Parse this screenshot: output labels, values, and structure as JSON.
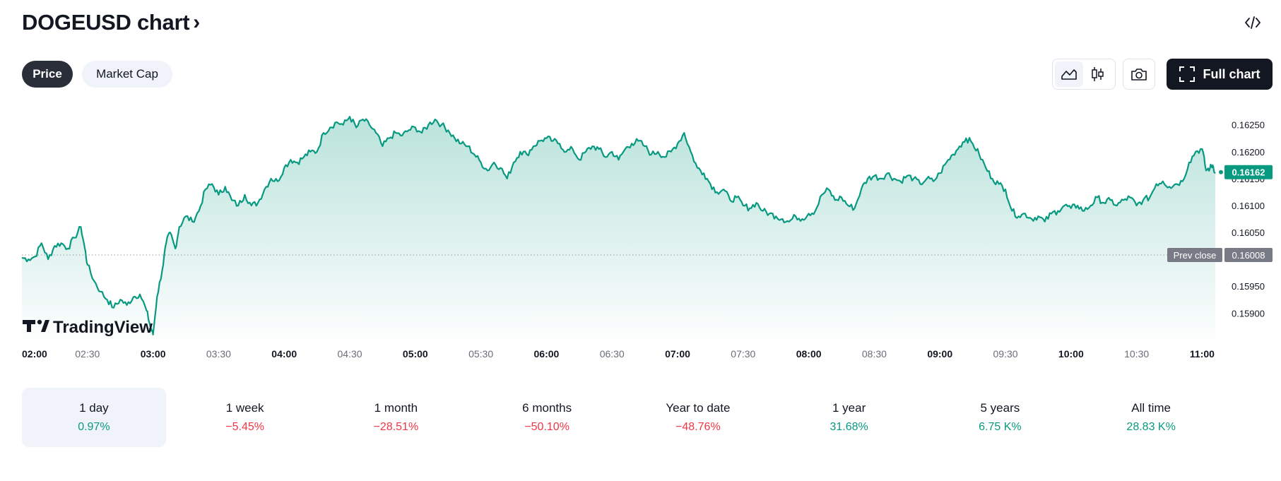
{
  "header": {
    "title": "DOGEUSD chart",
    "chevron": "›",
    "embed_icon": "code-icon"
  },
  "tabs": [
    {
      "label": "Price",
      "active": true
    },
    {
      "label": "Market Cap",
      "active": false
    }
  ],
  "toolbar": {
    "area_icon": "area-chart-icon",
    "candles_icon": "candlestick-icon",
    "snapshot_icon": "camera-icon",
    "full_chart_label": "Full chart",
    "full_chart_icon": "fullscreen-icon"
  },
  "watermark": {
    "text": "TradingView",
    "logo": "tradingview-logo-icon"
  },
  "colors": {
    "line": "#089981",
    "positive": "#089981",
    "negative": "#f23645",
    "prev_close_badge": "#787b86"
  },
  "chart_data": {
    "type": "area",
    "symbol": "DOGEUSD",
    "ylim": [
      0.15865,
      0.16285
    ],
    "y_ticks": [
      "0.16250",
      "0.16200",
      "0.16150",
      "0.16100",
      "0.16050",
      "0.15950",
      "0.15900"
    ],
    "x_ticks": [
      {
        "label": "02:00",
        "bold": true
      },
      {
        "label": "02:30",
        "bold": false
      },
      {
        "label": "03:00",
        "bold": true
      },
      {
        "label": "03:30",
        "bold": false
      },
      {
        "label": "04:00",
        "bold": true
      },
      {
        "label": "04:30",
        "bold": false
      },
      {
        "label": "05:00",
        "bold": true
      },
      {
        "label": "05:30",
        "bold": false
      },
      {
        "label": "06:00",
        "bold": true
      },
      {
        "label": "06:30",
        "bold": false
      },
      {
        "label": "07:00",
        "bold": true
      },
      {
        "label": "07:30",
        "bold": false
      },
      {
        "label": "08:00",
        "bold": true
      },
      {
        "label": "08:30",
        "bold": false
      },
      {
        "label": "09:00",
        "bold": true
      },
      {
        "label": "09:30",
        "bold": false
      },
      {
        "label": "10:00",
        "bold": true
      },
      {
        "label": "10:30",
        "bold": false
      },
      {
        "label": "11:00",
        "bold": true
      }
    ],
    "x_hours": [
      2.0,
      11.1
    ],
    "prev_close": {
      "label": "Prev close",
      "value": 0.16008,
      "text": "0.16008"
    },
    "last_price": {
      "value": 0.16162,
      "text": "0.16162"
    },
    "series": [
      [
        2.0,
        0.16003
      ],
      [
        2.05,
        0.16
      ],
      [
        2.1,
        0.16005
      ],
      [
        2.15,
        0.1603
      ],
      [
        2.2,
        0.16
      ],
      [
        2.25,
        0.16025
      ],
      [
        2.3,
        0.1603
      ],
      [
        2.35,
        0.1602
      ],
      [
        2.4,
        0.1604
      ],
      [
        2.45,
        0.1606
      ],
      [
        2.48,
        0.1602
      ],
      [
        2.5,
        0.1599
      ],
      [
        2.55,
        0.1596
      ],
      [
        2.6,
        0.1594
      ],
      [
        2.65,
        0.15925
      ],
      [
        2.7,
        0.1591
      ],
      [
        2.75,
        0.15925
      ],
      [
        2.8,
        0.15915
      ],
      [
        2.85,
        0.1593
      ],
      [
        2.9,
        0.15935
      ],
      [
        2.95,
        0.15905
      ],
      [
        2.98,
        0.15875
      ],
      [
        3.0,
        0.1586
      ],
      [
        3.03,
        0.1593
      ],
      [
        3.07,
        0.1598
      ],
      [
        3.1,
        0.1603
      ],
      [
        3.13,
        0.1605
      ],
      [
        3.17,
        0.1602
      ],
      [
        3.2,
        0.1606
      ],
      [
        3.25,
        0.1608
      ],
      [
        3.3,
        0.1607
      ],
      [
        3.35,
        0.1609
      ],
      [
        3.4,
        0.1613
      ],
      [
        3.45,
        0.1614
      ],
      [
        3.5,
        0.1612
      ],
      [
        3.55,
        0.16135
      ],
      [
        3.6,
        0.1611
      ],
      [
        3.65,
        0.161
      ],
      [
        3.7,
        0.1612
      ],
      [
        3.75,
        0.161
      ],
      [
        3.8,
        0.16105
      ],
      [
        3.85,
        0.1613
      ],
      [
        3.9,
        0.1615
      ],
      [
        3.95,
        0.16145
      ],
      [
        4.0,
        0.1617
      ],
      [
        4.05,
        0.16185
      ],
      [
        4.1,
        0.1618
      ],
      [
        4.15,
        0.1619
      ],
      [
        4.2,
        0.162
      ],
      [
        4.25,
        0.162
      ],
      [
        4.3,
        0.16235
      ],
      [
        4.35,
        0.16245
      ],
      [
        4.4,
        0.16255
      ],
      [
        4.45,
        0.1625
      ],
      [
        4.5,
        0.16265
      ],
      [
        4.55,
        0.16245
      ],
      [
        4.6,
        0.1626
      ],
      [
        4.65,
        0.1625
      ],
      [
        4.7,
        0.16235
      ],
      [
        4.75,
        0.1621
      ],
      [
        4.8,
        0.16225
      ],
      [
        4.85,
        0.16235
      ],
      [
        4.9,
        0.1623
      ],
      [
        4.95,
        0.1624
      ],
      [
        5.0,
        0.16245
      ],
      [
        5.05,
        0.16235
      ],
      [
        5.1,
        0.1625
      ],
      [
        5.15,
        0.1626
      ],
      [
        5.2,
        0.1625
      ],
      [
        5.25,
        0.1624
      ],
      [
        5.3,
        0.16225
      ],
      [
        5.35,
        0.16215
      ],
      [
        5.4,
        0.1621
      ],
      [
        5.45,
        0.16195
      ],
      [
        5.5,
        0.1618
      ],
      [
        5.55,
        0.16165
      ],
      [
        5.6,
        0.1618
      ],
      [
        5.65,
        0.1617
      ],
      [
        5.7,
        0.1615
      ],
      [
        5.75,
        0.1618
      ],
      [
        5.8,
        0.162
      ],
      [
        5.85,
        0.16195
      ],
      [
        5.9,
        0.1621
      ],
      [
        5.95,
        0.1622
      ],
      [
        6.0,
        0.16225
      ],
      [
        6.05,
        0.1622
      ],
      [
        6.1,
        0.16215
      ],
      [
        6.15,
        0.162
      ],
      [
        6.2,
        0.16205
      ],
      [
        6.25,
        0.16185
      ],
      [
        6.3,
        0.162
      ],
      [
        6.35,
        0.1621
      ],
      [
        6.4,
        0.16205
      ],
      [
        6.45,
        0.1619
      ],
      [
        6.5,
        0.162
      ],
      [
        6.55,
        0.16185
      ],
      [
        6.6,
        0.16205
      ],
      [
        6.65,
        0.16215
      ],
      [
        6.7,
        0.1622
      ],
      [
        6.75,
        0.1621
      ],
      [
        6.8,
        0.16195
      ],
      [
        6.85,
        0.162
      ],
      [
        6.9,
        0.1619
      ],
      [
        6.95,
        0.162
      ],
      [
        7.0,
        0.16215
      ],
      [
        7.05,
        0.16235
      ],
      [
        7.1,
        0.162
      ],
      [
        7.15,
        0.1617
      ],
      [
        7.2,
        0.1616
      ],
      [
        7.25,
        0.1614
      ],
      [
        7.3,
        0.16125
      ],
      [
        7.35,
        0.1613
      ],
      [
        7.4,
        0.1611
      ],
      [
        7.45,
        0.16115
      ],
      [
        7.5,
        0.161
      ],
      [
        7.55,
        0.16095
      ],
      [
        7.6,
        0.16105
      ],
      [
        7.65,
        0.1609
      ],
      [
        7.7,
        0.16085
      ],
      [
        7.75,
        0.1608
      ],
      [
        7.8,
        0.16075
      ],
      [
        7.85,
        0.1607
      ],
      [
        7.9,
        0.1608
      ],
      [
        7.95,
        0.16075
      ],
      [
        8.0,
        0.16085
      ],
      [
        8.05,
        0.1609
      ],
      [
        8.1,
        0.1612
      ],
      [
        8.15,
        0.1613
      ],
      [
        8.2,
        0.1611
      ],
      [
        8.25,
        0.16115
      ],
      [
        8.3,
        0.161
      ],
      [
        8.35,
        0.16095
      ],
      [
        8.4,
        0.1613
      ],
      [
        8.45,
        0.1615
      ],
      [
        8.5,
        0.16155
      ],
      [
        8.55,
        0.1615
      ],
      [
        8.6,
        0.1616
      ],
      [
        8.65,
        0.1615
      ],
      [
        8.7,
        0.16145
      ],
      [
        8.75,
        0.16155
      ],
      [
        8.8,
        0.1615
      ],
      [
        8.85,
        0.1614
      ],
      [
        8.9,
        0.1615
      ],
      [
        8.95,
        0.16145
      ],
      [
        9.0,
        0.1616
      ],
      [
        9.05,
        0.1618
      ],
      [
        9.1,
        0.16195
      ],
      [
        9.15,
        0.1621
      ],
      [
        9.2,
        0.16225
      ],
      [
        9.25,
        0.16215
      ],
      [
        9.3,
        0.16195
      ],
      [
        9.35,
        0.1617
      ],
      [
        9.4,
        0.1615
      ],
      [
        9.45,
        0.1614
      ],
      [
        9.5,
        0.1613
      ],
      [
        9.55,
        0.1609
      ],
      [
        9.6,
        0.1608
      ],
      [
        9.65,
        0.16085
      ],
      [
        9.7,
        0.16075
      ],
      [
        9.75,
        0.1608
      ],
      [
        9.8,
        0.1607
      ],
      [
        9.85,
        0.16085
      ],
      [
        9.9,
        0.1609
      ],
      [
        9.95,
        0.161
      ],
      [
        10.0,
        0.16095
      ],
      [
        10.05,
        0.161
      ],
      [
        10.1,
        0.1609
      ],
      [
        10.15,
        0.161
      ],
      [
        10.2,
        0.16115
      ],
      [
        10.25,
        0.16105
      ],
      [
        10.3,
        0.1611
      ],
      [
        10.35,
        0.161
      ],
      [
        10.4,
        0.1611
      ],
      [
        10.45,
        0.16115
      ],
      [
        10.5,
        0.161
      ],
      [
        10.55,
        0.1611
      ],
      [
        10.6,
        0.16115
      ],
      [
        10.65,
        0.1614
      ],
      [
        10.7,
        0.16145
      ],
      [
        10.75,
        0.16135
      ],
      [
        10.8,
        0.1614
      ],
      [
        10.85,
        0.16145
      ],
      [
        10.9,
        0.1618
      ],
      [
        10.95,
        0.162
      ],
      [
        11.0,
        0.16205
      ],
      [
        11.03,
        0.16165
      ],
      [
        11.06,
        0.1617
      ],
      [
        11.08,
        0.16175
      ],
      [
        11.1,
        0.16162
      ]
    ]
  },
  "periods": [
    {
      "label": "1 day",
      "value": "0.97%",
      "positive": true,
      "selected": true
    },
    {
      "label": "1 week",
      "value": "−5.45%",
      "positive": false,
      "selected": false
    },
    {
      "label": "1 month",
      "value": "−28.51%",
      "positive": false,
      "selected": false
    },
    {
      "label": "6 months",
      "value": "−50.10%",
      "positive": false,
      "selected": false
    },
    {
      "label": "Year to date",
      "value": "−48.76%",
      "positive": false,
      "selected": false
    },
    {
      "label": "1 year",
      "value": "31.68%",
      "positive": true,
      "selected": false
    },
    {
      "label": "5 years",
      "value": "6.75 K%",
      "positive": true,
      "selected": false
    },
    {
      "label": "All time",
      "value": "28.83 K%",
      "positive": true,
      "selected": false
    }
  ]
}
